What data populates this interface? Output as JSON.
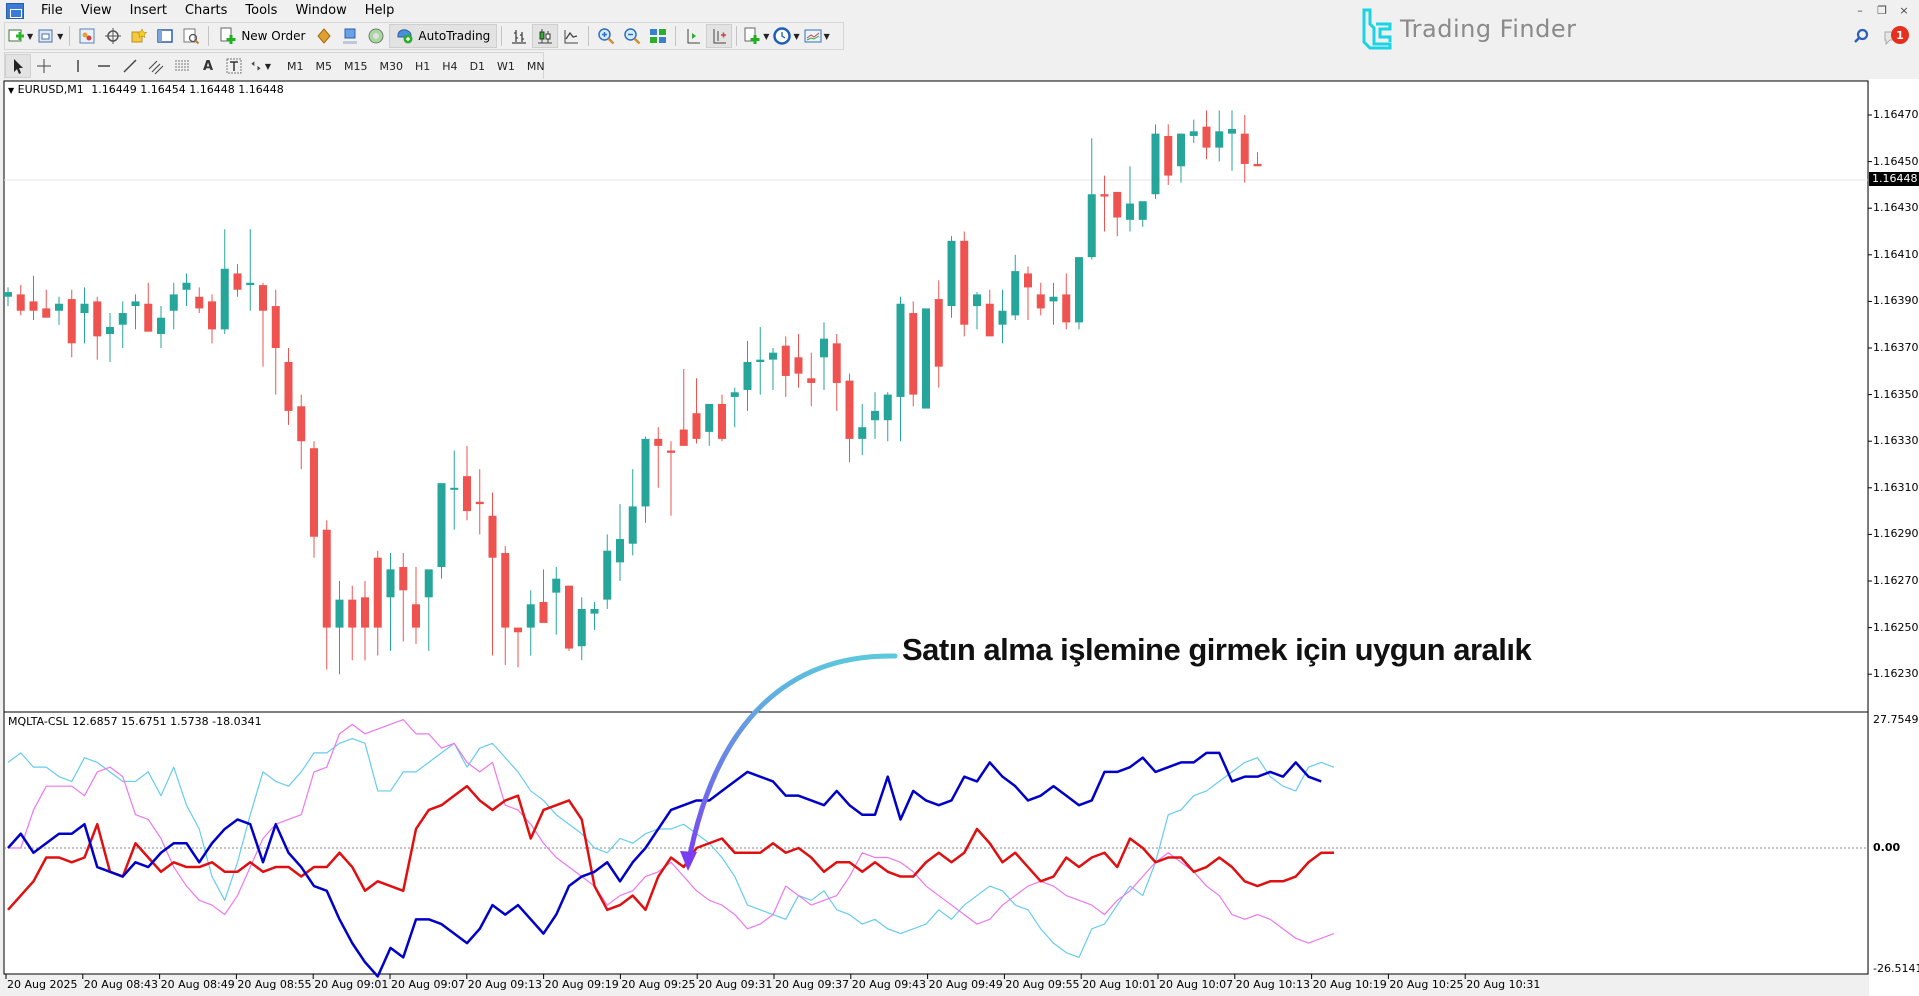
{
  "menu": {
    "items": [
      "File",
      "View",
      "Insert",
      "Charts",
      "Tools",
      "Window",
      "Help"
    ]
  },
  "window_controls": {
    "minimize": "–",
    "restore": "❐",
    "close": "×"
  },
  "toolbar": {
    "new_order_label": "New Order",
    "autotrading_label": "AutoTrading"
  },
  "timeframes": [
    "M1",
    "M5",
    "M15",
    "M30",
    "H1",
    "H4",
    "D1",
    "W1",
    "MN"
  ],
  "logo": {
    "text": "Trading Finder",
    "color": "#19d3e6"
  },
  "notifications": {
    "count": "1"
  },
  "chart": {
    "symbol_label": "EURUSD,M1",
    "ohlc": "1.16449 1.16454 1.16448 1.16448",
    "current_price": "1.16448",
    "bull_color": "#26a69a",
    "bear_color": "#ef5350"
  },
  "indicator": {
    "name": "MQLTA-CSL",
    "values": "12.6857 15.6751 1.5738 -18.0341",
    "axis_max": "27.7549",
    "axis_zero": "0.00",
    "axis_min": "-26.5141",
    "line_colors": [
      "#0000c8",
      "#e01010",
      "#66ccee",
      "#ee77ee"
    ]
  },
  "annotation": {
    "text": "Satın alma işlemine girmek için uygun aralık",
    "arrow_color_start": "#5bc8dc",
    "arrow_color_end": "#7a3cf0"
  },
  "chart_data": {
    "type": "line",
    "title": "EURUSD,M1 with MQLTA-CSL",
    "price_axis": [
      "1.16470",
      "1.16450",
      "1.16430",
      "1.16410",
      "1.16390",
      "1.16370",
      "1.16350",
      "1.16330",
      "1.16310",
      "1.16290",
      "1.16270",
      "1.16250",
      "1.16230"
    ],
    "time_axis": [
      "20 Aug 2025",
      "20 Aug 08:43",
      "20 Aug 08:49",
      "20 Aug 08:55",
      "20 Aug 09:01",
      "20 Aug 09:07",
      "20 Aug 09:13",
      "20 Aug 09:19",
      "20 Aug 09:25",
      "20 Aug 09:31",
      "20 Aug 09:37",
      "20 Aug 09:43",
      "20 Aug 09:49",
      "20 Aug 09:55",
      "20 Aug 10:01",
      "20 Aug 10:07",
      "20 Aug 10:13",
      "20 Aug 10:19",
      "20 Aug 10:25",
      "20 Aug 10:31"
    ],
    "indicator_range": [
      -26.5141,
      27.7549
    ],
    "series": [
      {
        "name": "blue (line 1)",
        "last": 12.6857
      },
      {
        "name": "cyan (line 2)",
        "last": 15.6751
      },
      {
        "name": "red (line 3)",
        "last": 1.5738
      },
      {
        "name": "magenta (line 4)",
        "last": -18.0341
      }
    ]
  }
}
